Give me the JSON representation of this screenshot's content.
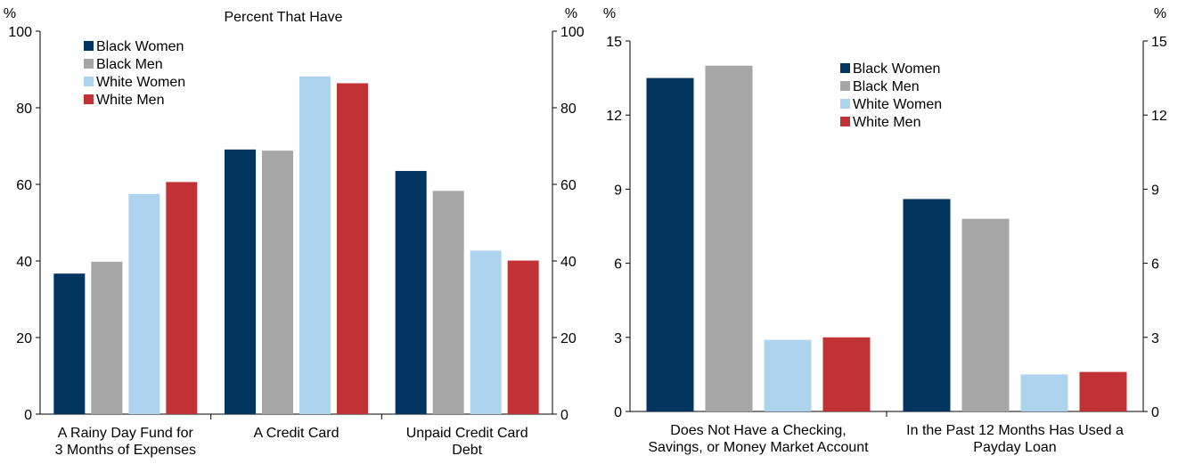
{
  "chart_data": [
    {
      "type": "bar",
      "title": "Percent That Have",
      "ylabel_left": "%",
      "ylabel_right": "%",
      "ylim": [
        0,
        100
      ],
      "yticks": [
        0,
        20,
        40,
        60,
        80,
        100
      ],
      "grid": false,
      "legend_position": "top-left",
      "categories": [
        [
          "A Rainy Day Fund for",
          "3 Months of Expenses"
        ],
        [
          "A Credit Card"
        ],
        [
          "Unpaid Credit Card",
          "Debt"
        ]
      ],
      "series": [
        {
          "name": "Black Women",
          "color": "#003560",
          "values": [
            36.7,
            69.1,
            63.5
          ]
        },
        {
          "name": "Black Men",
          "color": "#a6a6a6",
          "values": [
            39.8,
            68.8,
            58.3
          ]
        },
        {
          "name": "White Women",
          "color": "#aed3ee",
          "values": [
            57.5,
            88.2,
            42.7
          ]
        },
        {
          "name": "White Men",
          "color": "#c03234",
          "values": [
            60.6,
            86.4,
            40.1
          ]
        }
      ]
    },
    {
      "type": "bar",
      "title": "",
      "ylabel_left": "%",
      "ylabel_right": "%",
      "ylim": [
        0,
        15
      ],
      "yticks": [
        0,
        3,
        6,
        9,
        12,
        15
      ],
      "grid": false,
      "legend_position": "top-center",
      "categories": [
        [
          "Does Not Have a Checking,",
          "Savings, or Money Market Account"
        ],
        [
          "In the Past 12 Months Has Used a",
          "Payday Loan"
        ]
      ],
      "series": [
        {
          "name": "Black Women",
          "color": "#003560",
          "values": [
            13.5,
            8.6
          ]
        },
        {
          "name": "Black Men",
          "color": "#a6a6a6",
          "values": [
            14.0,
            7.8
          ]
        },
        {
          "name": "White Women",
          "color": "#aed3ee",
          "values": [
            2.9,
            1.5
          ]
        },
        {
          "name": "White Men",
          "color": "#c03234",
          "values": [
            3.0,
            1.6
          ]
        }
      ]
    }
  ]
}
